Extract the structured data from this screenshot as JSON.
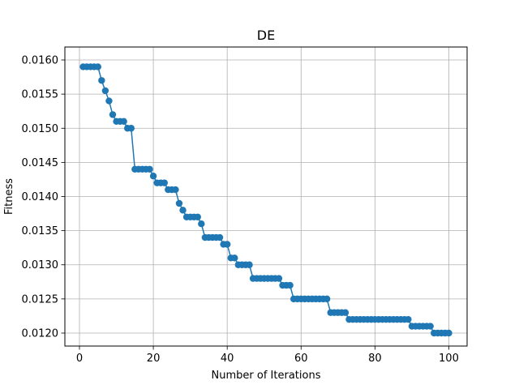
{
  "chart_data": {
    "type": "line",
    "title": "DE",
    "xlabel": "Number of Iterations",
    "ylabel": "Fitness",
    "xlim": [
      -3.95,
      104.95
    ],
    "ylim": [
      0.01181,
      0.01619
    ],
    "xticks": [
      0,
      20,
      40,
      60,
      80,
      100
    ],
    "yticks": [
      0.012,
      0.0125,
      0.013,
      0.0135,
      0.014,
      0.0145,
      0.015,
      0.0155,
      0.016
    ],
    "ytick_labels": [
      "0.0120",
      "0.0125",
      "0.0130",
      "0.0135",
      "0.0140",
      "0.0145",
      "0.0150",
      "0.0155",
      "0.0160"
    ],
    "grid": true,
    "line_color": "#1f77b4",
    "series": [
      {
        "x": [
          1,
          2,
          3,
          4,
          5,
          6,
          7,
          8,
          9,
          10,
          11,
          12,
          13,
          14,
          15,
          16,
          17,
          18,
          19,
          20,
          21,
          22,
          23,
          24,
          25,
          26,
          27,
          28,
          29,
          30,
          31,
          32,
          33,
          34,
          35,
          36,
          37,
          38,
          39,
          40,
          41,
          42,
          43,
          44,
          45,
          46,
          47,
          48,
          49,
          50,
          51,
          52,
          53,
          54,
          55,
          56,
          57,
          58,
          59,
          60,
          61,
          62,
          63,
          64,
          65,
          66,
          67,
          68,
          69,
          70,
          71,
          72,
          73,
          74,
          75,
          76,
          77,
          78,
          79,
          80,
          81,
          82,
          83,
          84,
          85,
          86,
          87,
          88,
          89,
          90,
          91,
          92,
          93,
          94,
          95,
          96,
          97,
          98,
          99,
          100
        ],
        "values": [
          0.0159,
          0.0159,
          0.0159,
          0.0159,
          0.0159,
          0.0157,
          0.01555,
          0.0154,
          0.0152,
          0.0151,
          0.0151,
          0.0151,
          0.015,
          0.015,
          0.0144,
          0.0144,
          0.0144,
          0.0144,
          0.0144,
          0.0143,
          0.0142,
          0.0142,
          0.0142,
          0.0141,
          0.0141,
          0.0141,
          0.0139,
          0.0138,
          0.0137,
          0.0137,
          0.0137,
          0.0137,
          0.0136,
          0.0134,
          0.0134,
          0.0134,
          0.0134,
          0.0134,
          0.0133,
          0.0133,
          0.0131,
          0.0131,
          0.013,
          0.013,
          0.013,
          0.013,
          0.0128,
          0.0128,
          0.0128,
          0.0128,
          0.0128,
          0.0128,
          0.0128,
          0.0128,
          0.0127,
          0.0127,
          0.0127,
          0.0125,
          0.0125,
          0.0125,
          0.0125,
          0.0125,
          0.0125,
          0.0125,
          0.0125,
          0.0125,
          0.0125,
          0.0123,
          0.0123,
          0.0123,
          0.0123,
          0.0123,
          0.0122,
          0.0122,
          0.0122,
          0.0122,
          0.0122,
          0.0122,
          0.0122,
          0.0122,
          0.0122,
          0.0122,
          0.0122,
          0.0122,
          0.0122,
          0.0122,
          0.0122,
          0.0122,
          0.0122,
          0.0121,
          0.0121,
          0.0121,
          0.0121,
          0.0121,
          0.0121,
          0.012,
          0.012,
          0.012,
          0.012,
          0.012
        ]
      }
    ]
  }
}
